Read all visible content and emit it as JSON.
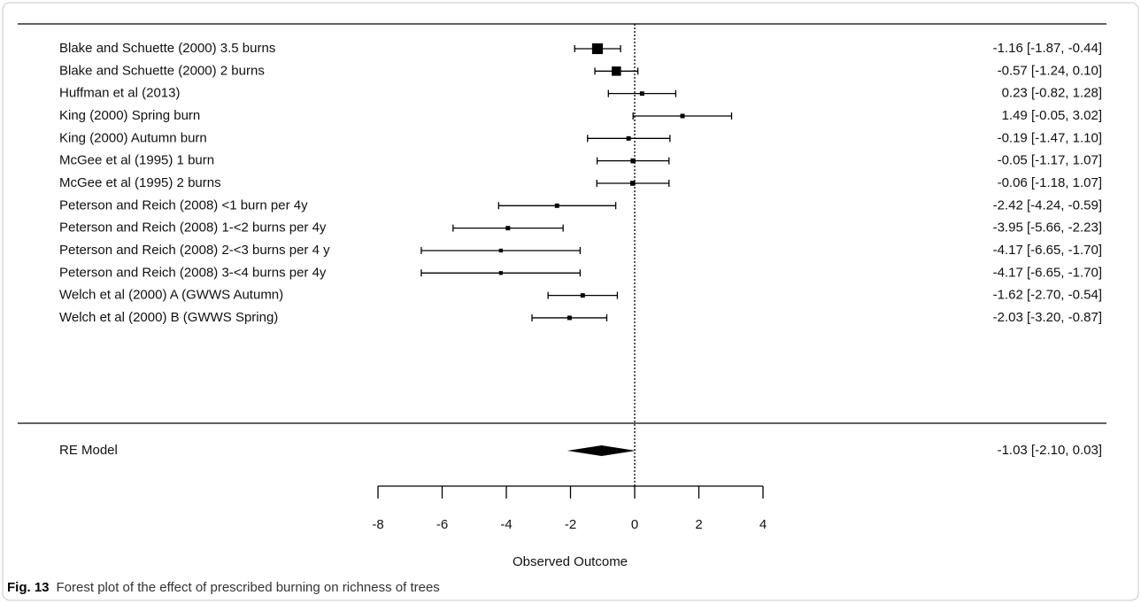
{
  "chart_data": {
    "type": "forest",
    "categories": [
      "Blake and Schuette (2000) 3.5 burns",
      "Blake and Schuette (2000) 2 burns",
      "Huffman et al (2013)",
      "King (2000) Spring burn",
      "King (2000) Autumn burn",
      "McGee et al (1995) 1 burn",
      "McGee et al (1995) 2 burns",
      "Peterson and Reich (2008) <1 burn per 4y",
      "Peterson and Reich (2008) 1-<2 burns per 4y",
      "Peterson and Reich (2008) 2-<3 burns per 4 y",
      "Peterson and Reich (2008) 3-<4 burns per 4y",
      "Welch et al (2000) A (GWWS Autumn)",
      "Welch et al (2000) B (GWWS Spring)"
    ],
    "values": [
      -1.16,
      -0.57,
      0.23,
      1.49,
      -0.19,
      -0.05,
      -0.06,
      -2.42,
      -3.95,
      -4.17,
      -4.17,
      -1.62,
      -2.03
    ],
    "lower": [
      -1.87,
      -1.24,
      -0.82,
      -0.05,
      -1.47,
      -1.17,
      -1.18,
      -4.24,
      -5.66,
      -6.65,
      -6.65,
      -2.7,
      -3.2
    ],
    "upper": [
      -0.44,
      0.1,
      1.28,
      3.02,
      1.1,
      1.07,
      1.07,
      -0.59,
      -2.23,
      -1.7,
      -1.7,
      -0.54,
      -0.87
    ],
    "value_labels": [
      "-1.16 [-1.87, -0.44]",
      "-0.57 [-1.24,  0.10]",
      "0.23 [-0.82,  1.28]",
      "1.49 [-0.05,  3.02]",
      "-0.19 [-1.47,  1.10]",
      "-0.05 [-1.17,  1.07]",
      "-0.06 [-1.18,  1.07]",
      "-2.42 [-4.24, -0.59]",
      "-3.95 [-5.66, -2.23]",
      "-4.17 [-6.65, -1.70]",
      "-4.17 [-6.65, -1.70]",
      "-1.62 [-2.70, -0.54]",
      "-2.03 [-3.20, -0.87]"
    ],
    "weights": [
      12,
      9,
      2,
      2,
      2,
      2.5,
      2.5,
      2,
      2,
      1.5,
      1.5,
      2,
      2
    ],
    "color": "#000000",
    "summary": {
      "name": "RE Model",
      "value": -1.03,
      "lower": -2.1,
      "upper": 0.03,
      "value_label": "-1.03 [-2.10,  0.03]"
    },
    "reference_line": 0,
    "xlim": [
      -8,
      4
    ],
    "xticks": [
      -8,
      -6,
      -4,
      -2,
      0,
      2,
      4
    ],
    "x_label": "Observed Outcome"
  },
  "caption_label": "Fig. 13",
  "caption": "Forest plot of the effect of prescribed burning on richness of trees"
}
